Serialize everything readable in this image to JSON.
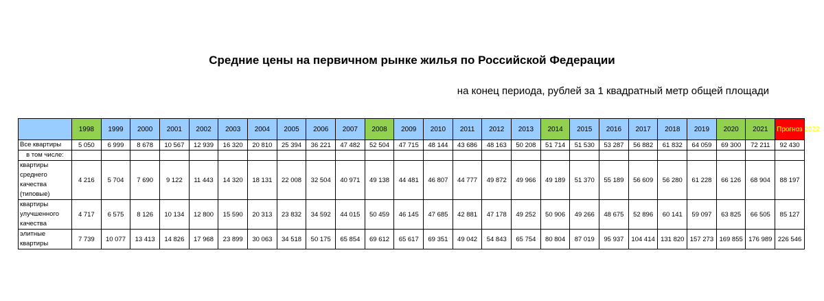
{
  "title": "Средние цены на первичном рынке жилья по Российской Федерации",
  "subtitle": "на конец периода, рублей за 1 квадратный метр общей площади",
  "colors": {
    "header_blue": "#99ccff",
    "highlight_green": "#92d050",
    "forecast_red": "#ff0000",
    "forecast_text": "#ffff00"
  },
  "years": [
    "1998",
    "1999",
    "2000",
    "2001",
    "2002",
    "2003",
    "2004",
    "2005",
    "2006",
    "2007",
    "2008",
    "2009",
    "2010",
    "2011",
    "2012",
    "2013",
    "2014",
    "2015",
    "2016",
    "2017",
    "2018",
    "2019",
    "2020",
    "2021",
    "Прогноз 2022"
  ],
  "highlighted_years": [
    "1998",
    "2008",
    "2014",
    "2020",
    "2021"
  ],
  "rows": [
    {
      "label": "Все квартиры",
      "values": [
        "5 050",
        "6 999",
        "8 678",
        "10 567",
        "12 939",
        "16 320",
        "20 810",
        "25 394",
        "36 221",
        "47 482",
        "52 504",
        "47 715",
        "48 144",
        "43 686",
        "48 163",
        "50 208",
        "51 714",
        "51 530",
        "53 287",
        "56 882",
        "61 832",
        "64 059",
        "69 300",
        "72 211",
        "92 430"
      ]
    },
    {
      "label": "в том числе:",
      "values": []
    },
    {
      "label": "квартиры среднего качества (типовые)",
      "values": [
        "4 216",
        "5 704",
        "7 690",
        "9 122",
        "11 443",
        "14 320",
        "18 131",
        "22 008",
        "32 504",
        "40 971",
        "49 138",
        "44 481",
        "46 807",
        "44 777",
        "49 872",
        "49 966",
        "49 189",
        "51 370",
        "55 189",
        "56 609",
        "56 280",
        "61 228",
        "66 126",
        "68 904",
        "88 197"
      ]
    },
    {
      "label": "квартиры улучшенного качества",
      "values": [
        "4 717",
        "6 575",
        "8 126",
        "10 134",
        "12 800",
        "15 590",
        "20 313",
        "23 832",
        "34 592",
        "44 015",
        "50 459",
        "46 145",
        "47 685",
        "42 881",
        "47 178",
        "49 252",
        "50 906",
        "49 266",
        "48 675",
        "52 896",
        "60 141",
        "59 097",
        "63 825",
        "66 505",
        "85 127"
      ]
    },
    {
      "label": "элитные квартиры",
      "values": [
        "7 739",
        "10 077",
        "13 413",
        "14 826",
        "17 968",
        "23 899",
        "30 063",
        "34 518",
        "50 175",
        "65 854",
        "69 612",
        "65 617",
        "69 351",
        "49 042",
        "54 843",
        "65 754",
        "80 804",
        "87 019",
        "95 937",
        "104 414",
        "131 820",
        "157 273",
        "169 855",
        "176 989",
        "226 546"
      ]
    }
  ]
}
